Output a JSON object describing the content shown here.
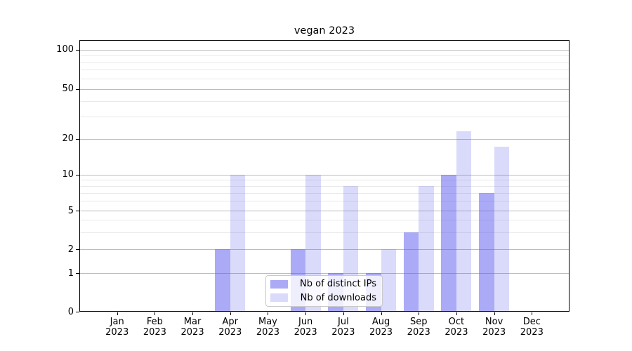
{
  "title": "vegan 2023",
  "chart_data": {
    "type": "bar",
    "categories": [
      "Jan",
      "Feb",
      "Mar",
      "Apr",
      "May",
      "Jun",
      "Jul",
      "Aug",
      "Sep",
      "Oct",
      "Nov",
      "Dec"
    ],
    "year_label": "2023",
    "series": [
      {
        "name": "Nb of distinct IPs",
        "color": "rgba(85,85,238,0.5)",
        "values": [
          0,
          0,
          0,
          2,
          0,
          2,
          1,
          1,
          3,
          10,
          7,
          0
        ]
      },
      {
        "name": "Nb of downloads",
        "color": "rgba(85,85,238,0.22)",
        "values": [
          0,
          0,
          0,
          10,
          0,
          10,
          8,
          2,
          8,
          23,
          17,
          0
        ]
      }
    ],
    "xlabel": "",
    "ylabel": "",
    "yticks": [
      0,
      1,
      2,
      5,
      10,
      20,
      50,
      100
    ],
    "minor_yticks": [
      3,
      4,
      6,
      7,
      8,
      9,
      30,
      40,
      60,
      70,
      80,
      90
    ],
    "ylim": [
      0,
      118
    ],
    "yscale": "symlog-like",
    "grid": true,
    "legend_position": "lower center"
  },
  "colors": {
    "background": "#ffffff",
    "bar_dark": "rgba(85,85,238,0.5)",
    "bar_light": "rgba(85,85,238,0.22)",
    "grid_major": "#bcbcbc",
    "grid_minor": "#e9e9e9",
    "spine": "#000000",
    "legend_border": "#c9c9c9",
    "text": "#000000"
  }
}
